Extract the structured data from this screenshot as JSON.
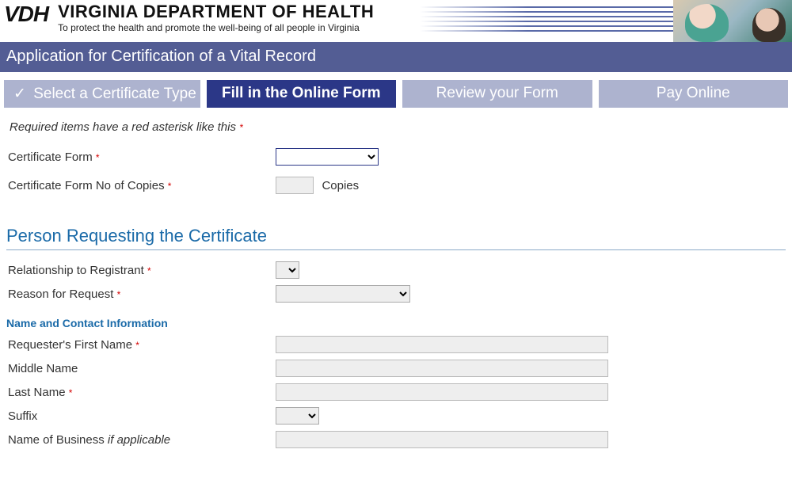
{
  "header": {
    "logo_text": "VDH",
    "title": "VIRGINIA DEPARTMENT OF HEALTH",
    "subtitle": "To protect the health and promote the well-being of all people in Virginia"
  },
  "page_title": "Application for Certification of a Vital Record",
  "steps": [
    {
      "label": "Select a Certificate Type",
      "state": "completed"
    },
    {
      "label": "Fill in the Online Form",
      "state": "active"
    },
    {
      "label": "Review your Form",
      "state": "pending"
    },
    {
      "label": "Pay Online",
      "state": "pending"
    }
  ],
  "required_note": "Required items have a red asterisk like this",
  "form": {
    "certificate_form": {
      "label": "Certificate Form",
      "required": true,
      "value": ""
    },
    "copies": {
      "label": "Certificate Form No of Copies",
      "required": true,
      "value": "",
      "suffix": "Copies"
    }
  },
  "section_requester": {
    "title": "Person Requesting the Certificate",
    "relationship": {
      "label": "Relationship to Registrant",
      "required": true,
      "value": ""
    },
    "reason": {
      "label": "Reason for Request",
      "required": true,
      "value": ""
    },
    "subsection": "Name and Contact Information",
    "first_name": {
      "label": "Requester's First Name",
      "required": true,
      "value": ""
    },
    "middle_name": {
      "label": "Middle Name",
      "required": false,
      "value": ""
    },
    "last_name": {
      "label": "Last Name",
      "required": true,
      "value": ""
    },
    "suffix": {
      "label": "Suffix",
      "required": false,
      "value": ""
    },
    "business": {
      "label": "Name of Business",
      "label_suffix": "if applicable",
      "required": false,
      "value": ""
    }
  },
  "colors": {
    "brand_bar": "#535d94",
    "step_inactive": "#adb3cf",
    "step_active": "#2b3787",
    "section_blue": "#1a6aa8",
    "required_red": "#d40000",
    "input_bg": "#eeeeee"
  }
}
